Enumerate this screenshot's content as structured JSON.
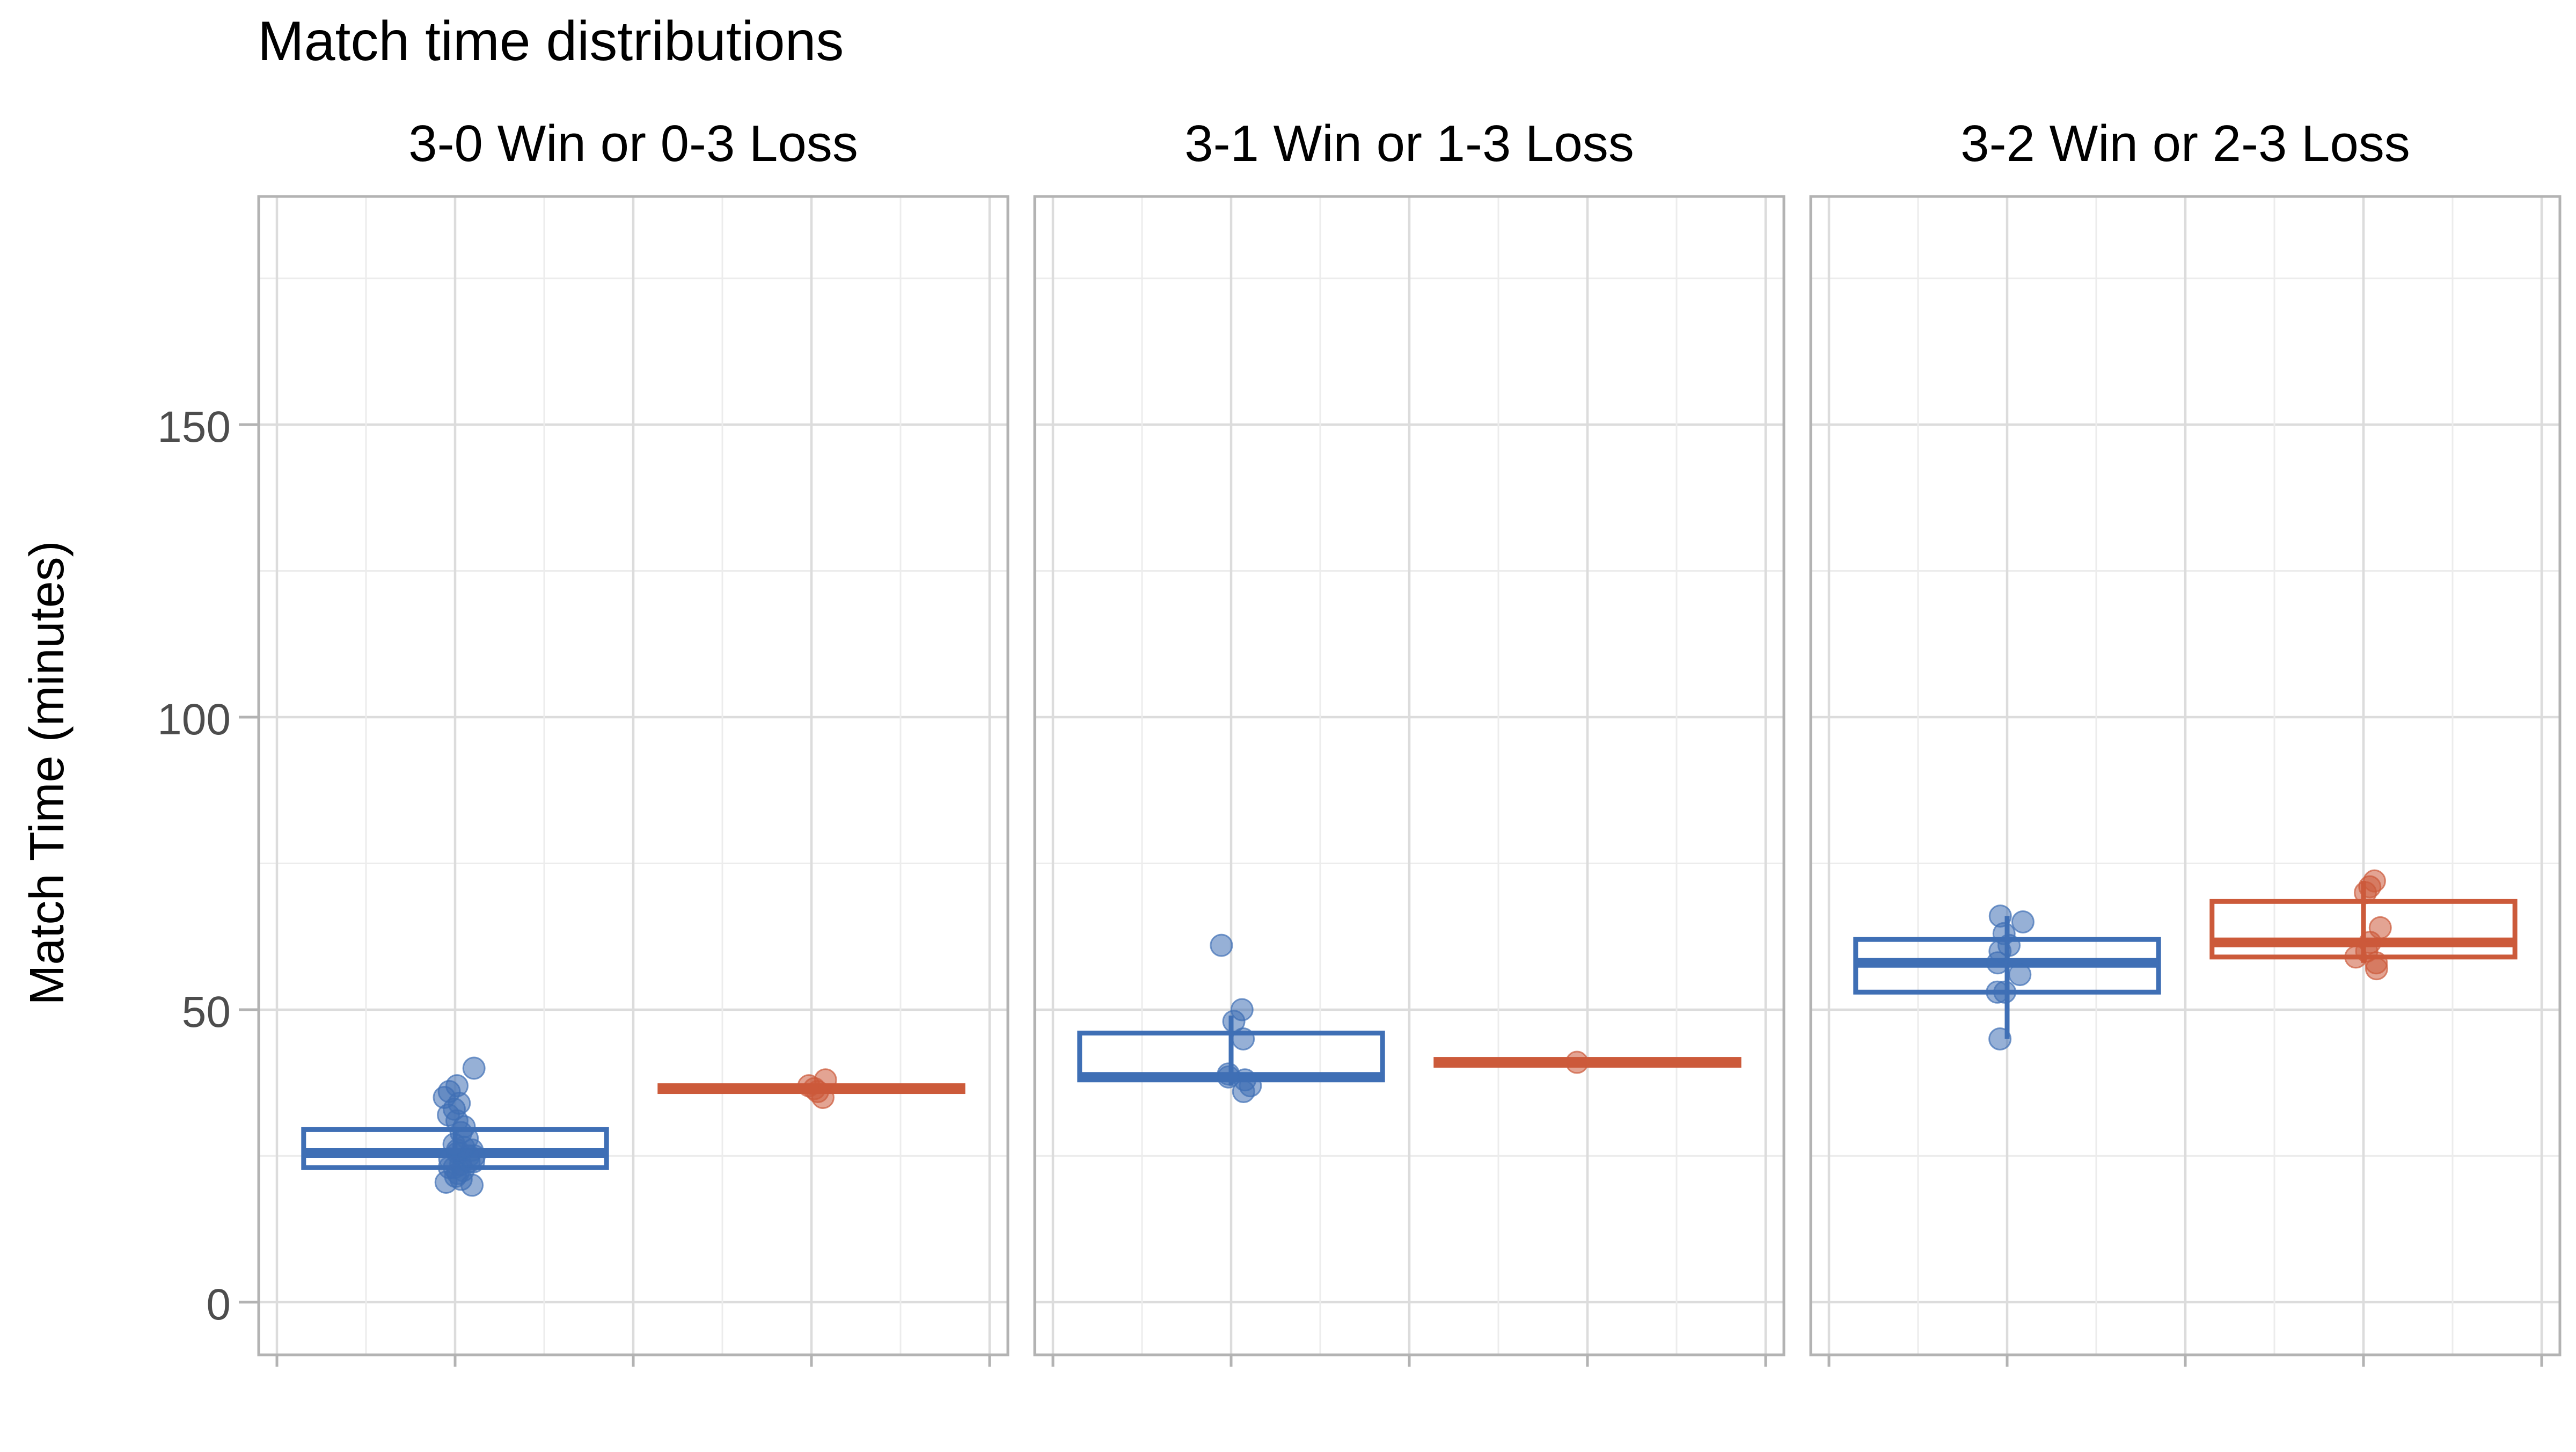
{
  "chart_data": {
    "type": "box",
    "title": "Match time distributions",
    "xlabel": "",
    "ylabel": "Match Time (minutes)",
    "ylim": [
      -9,
      189
    ],
    "yticks": [
      0,
      50,
      100,
      150
    ],
    "grid": true,
    "legend": "none",
    "colors": {
      "win": "#3f6fb5",
      "loss": "#cc5a3a",
      "panel_border": "#b3b3b3",
      "grid_major": "#dcdcdc",
      "grid_minor": "#ececec",
      "tick_text": "#4d4d4d",
      "title_text": "#000000"
    },
    "panels": [
      {
        "title": "3-0 Win or 0-3 Loss",
        "boxes": [
          {
            "color": "#3f6fb5",
            "q1": 23.0,
            "median": 25.5,
            "q3": 29.5,
            "whisker_low": 22.0,
            "whisker_high": 30.0,
            "points": [
              20,
              20.5,
              21,
              21.5,
              22,
              22.5,
              23,
              23,
              23.5,
              24,
              24,
              24.5,
              25,
              25,
              25.5,
              26,
              26,
              26.5,
              27,
              28,
              29,
              30,
              31,
              32,
              33,
              34,
              35,
              36,
              37,
              40
            ]
          },
          {
            "color": "#cc5a3a",
            "q1": 36.0,
            "median": 36.5,
            "q3": 37.0,
            "whisker_low": 35.5,
            "whisker_high": 37.0,
            "points": [
              35,
              36,
              36.5,
              37,
              38
            ]
          }
        ]
      },
      {
        "title": "3-1 Win or 1-3 Loss",
        "boxes": [
          {
            "color": "#3f6fb5",
            "q1": 38.0,
            "median": 38.5,
            "q3": 46.0,
            "whisker_low": 37.0,
            "whisker_high": 49.0,
            "points": [
              36,
              37,
              38,
              38.5,
              39,
              45,
              48,
              50,
              61
            ]
          },
          {
            "color": "#cc5a3a",
            "q1": 40.5,
            "median": 41.0,
            "q3": 41.5,
            "whisker_low": 40.5,
            "whisker_high": 41.5,
            "points": [
              41
            ]
          }
        ]
      },
      {
        "title": "3-2 Win or 2-3 Loss",
        "boxes": [
          {
            "color": "#3f6fb5",
            "q1": 53.0,
            "median": 58.0,
            "q3": 62.0,
            "whisker_low": 45.0,
            "whisker_high": 66.0,
            "points": [
              45,
              53,
              53,
              56,
              58,
              60,
              61,
              63,
              65,
              66
            ]
          },
          {
            "color": "#cc5a3a",
            "q1": 59.0,
            "median": 61.5,
            "q3": 68.5,
            "whisker_low": 58.0,
            "whisker_high": 72.0,
            "points": [
              57,
              58,
              59,
              60,
              61.5,
              64,
              70,
              71,
              72
            ]
          }
        ]
      }
    ]
  }
}
